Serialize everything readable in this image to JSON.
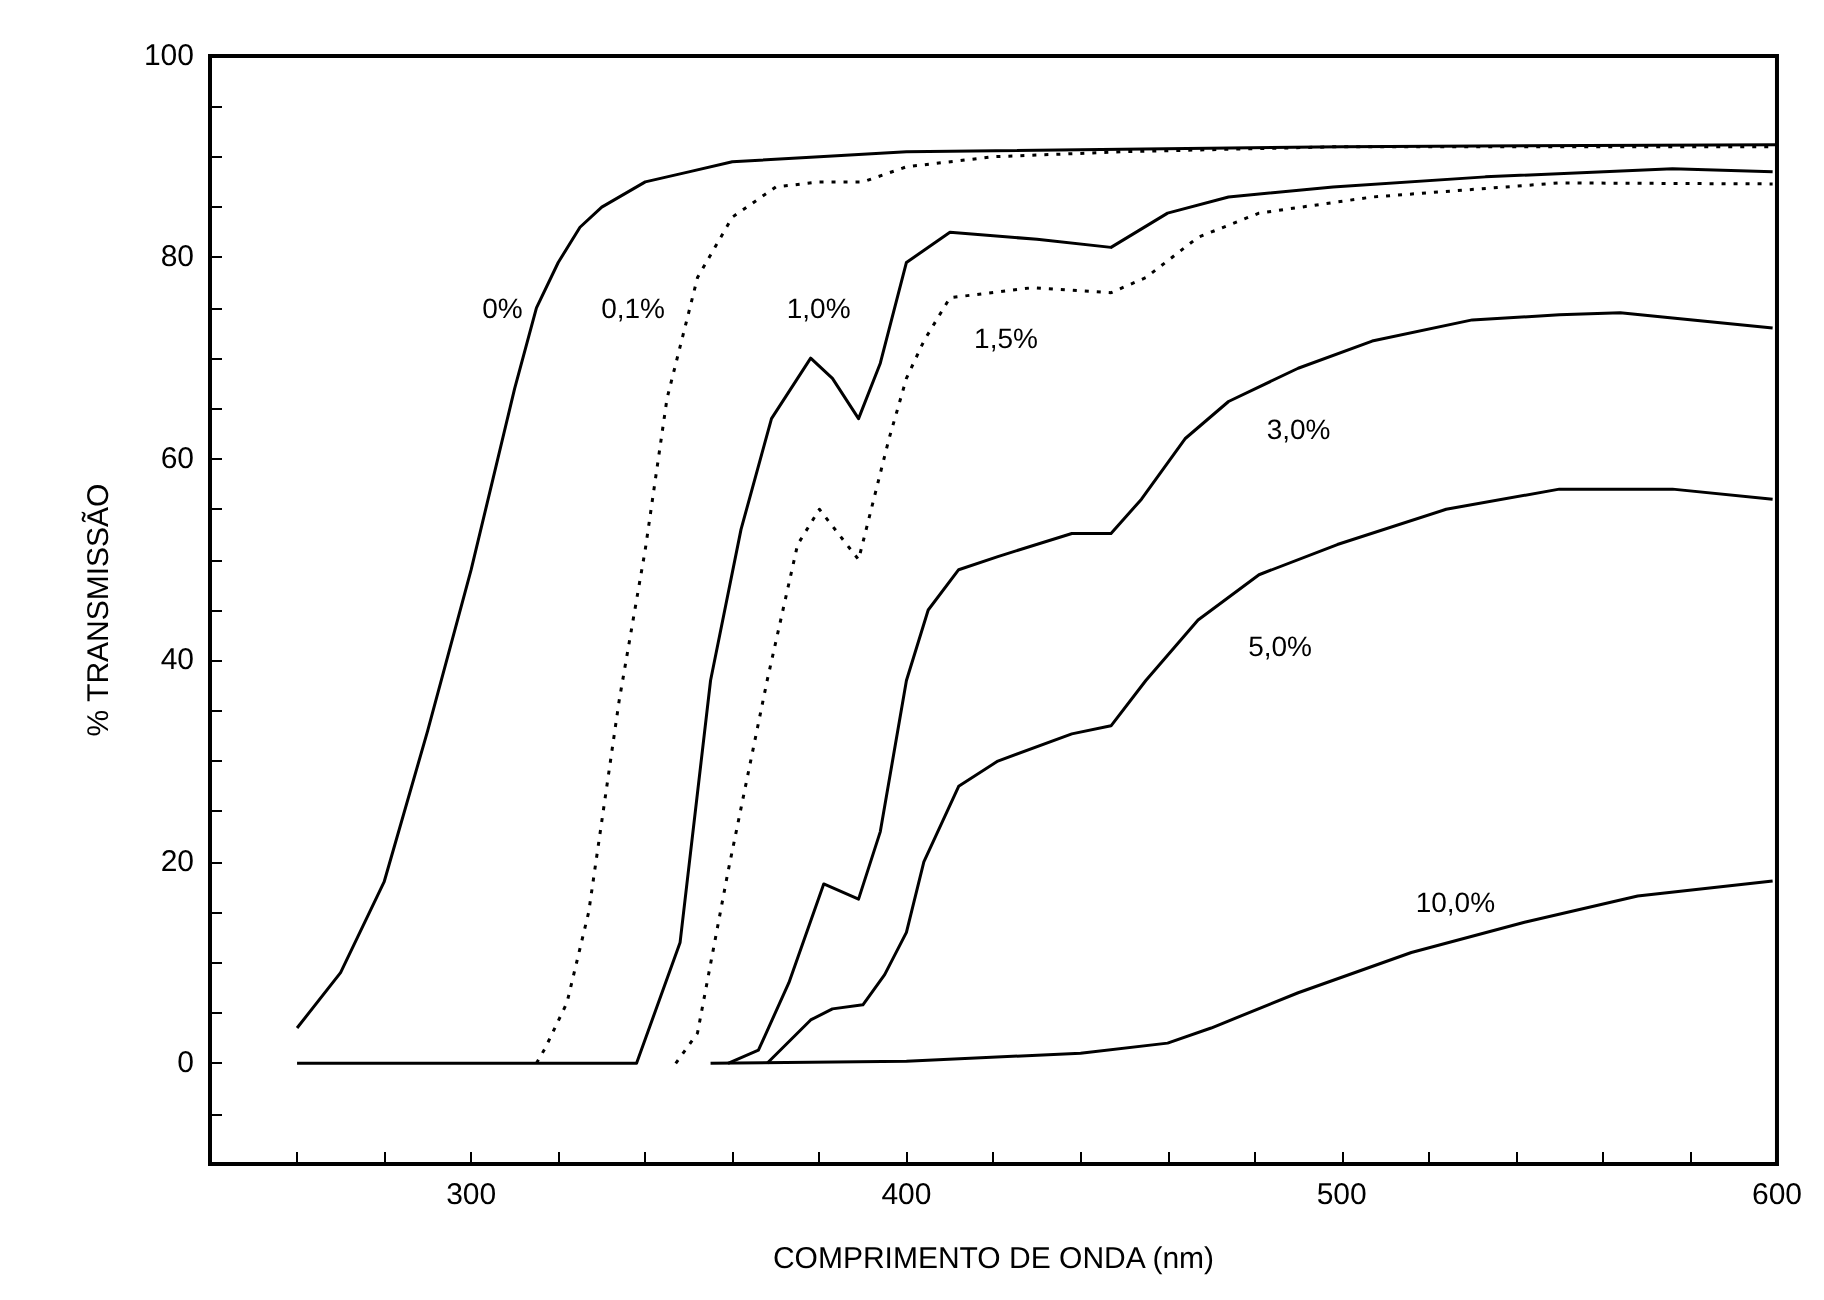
{
  "chart_data": {
    "type": "line",
    "xlabel": "COMPRIMENTO DE ONDA (nm)",
    "ylabel": "% TRANSMISSÃO",
    "xlim": [
      240,
      600
    ],
    "ylim": [
      -10,
      100
    ],
    "xticks": [
      {
        "value": 260,
        "label": null
      },
      {
        "value": 280,
        "label": null
      },
      300,
      {
        "value": 320,
        "label": null
      },
      {
        "value": 340,
        "label": null
      },
      {
        "value": 360,
        "label": null
      },
      {
        "value": 380,
        "label": null
      },
      400,
      {
        "value": 420,
        "label": null
      },
      {
        "value": 440,
        "label": null
      },
      {
        "value": 460,
        "label": null
      },
      {
        "value": 480,
        "label": null
      },
      500,
      {
        "value": 520,
        "label": null
      },
      {
        "value": 540,
        "label": null
      },
      {
        "value": 560,
        "label": null
      },
      {
        "value": 580,
        "label": null
      },
      600
    ],
    "yticks": [
      {
        "value": -5,
        "label": null
      },
      0,
      {
        "value": 5,
        "label": null
      },
      {
        "value": 10,
        "label": null
      },
      {
        "value": 15,
        "label": null
      },
      20,
      {
        "value": 25,
        "label": null
      },
      {
        "value": 30,
        "label": null
      },
      {
        "value": 35,
        "label": null
      },
      40,
      {
        "value": 45,
        "label": null
      },
      {
        "value": 50,
        "label": null
      },
      {
        "value": 55,
        "label": null
      },
      60,
      {
        "value": 65,
        "label": null
      },
      {
        "value": 70,
        "label": null
      },
      {
        "value": 75,
        "label": null
      },
      80,
      {
        "value": 85,
        "label": null
      },
      {
        "value": 90,
        "label": null
      },
      {
        "value": 95,
        "label": null
      },
      100
    ],
    "grid": false,
    "legend": false,
    "marker": "none",
    "series": [
      {
        "name": "0%",
        "color": "#000000",
        "line_style": "solid",
        "x": [
          260,
          270,
          280,
          290,
          300,
          305,
          310,
          315,
          320,
          325,
          330,
          340,
          350,
          360,
          380,
          400,
          500,
          600
        ],
        "values": [
          3.5,
          9,
          18,
          33,
          49,
          58,
          67,
          75,
          79.5,
          83,
          85,
          87.5,
          88.5,
          89.5,
          90,
          90.5,
          91,
          91.2
        ]
      },
      {
        "name": "0,1%",
        "color": "#000000",
        "line_style": "dotted",
        "x": [
          315,
          317,
          322,
          327,
          334,
          340,
          345,
          352,
          360,
          370,
          380,
          390,
          400,
          420,
          450,
          500,
          600
        ],
        "values": [
          0,
          1.5,
          6,
          15,
          36,
          51,
          66,
          78,
          84,
          87,
          87.5,
          87.5,
          89,
          90,
          90.5,
          91,
          91
        ]
      },
      {
        "name": "1,0%",
        "color": "#000000",
        "line_style": "solid",
        "x": [
          260,
          338,
          348,
          355,
          362,
          369,
          378,
          383,
          389,
          394,
          400,
          410,
          430,
          447,
          460,
          474,
          498,
          533,
          576,
          599
        ],
        "values": [
          0,
          0,
          12,
          38,
          53,
          64,
          70,
          68,
          64,
          69.5,
          79.5,
          82.5,
          81.8,
          81,
          84.4,
          86,
          87,
          88,
          88.8,
          88.5
        ]
      },
      {
        "name": "1,5%",
        "color": "#000000",
        "line_style": "dotted",
        "x": [
          347,
          352,
          359,
          368,
          375,
          380,
          389,
          396,
          400,
          404,
          410,
          429,
          447,
          455,
          467,
          481,
          507,
          550,
          599
        ],
        "values": [
          0,
          3,
          19,
          38,
          51.5,
          55,
          50,
          62,
          68,
          71.7,
          76,
          77,
          76.5,
          78,
          82,
          84.4,
          86,
          87.4,
          87.3
        ]
      },
      {
        "name": "3,0%",
        "color": "#000000",
        "line_style": "solid",
        "x": [
          359,
          366,
          373,
          381,
          389,
          394,
          400,
          405,
          412,
          421,
          438,
          447,
          454,
          464,
          474,
          490,
          507,
          530,
          550,
          564,
          576,
          599
        ],
        "values": [
          0,
          1.3,
          8,
          17.8,
          16.3,
          23,
          38,
          45,
          49,
          50.3,
          52.6,
          52.6,
          56,
          62,
          65.7,
          69,
          71.7,
          73.8,
          74.3,
          74.5,
          74,
          73
        ]
      },
      {
        "name": "5,0%",
        "color": "#000000",
        "line_style": "solid",
        "x": [
          368,
          378,
          383,
          390,
          395,
          400,
          404,
          412,
          421,
          438,
          447,
          455,
          467,
          481,
          499,
          524,
          550,
          576,
          599
        ],
        "values": [
          0,
          4.3,
          5.4,
          5.8,
          8.8,
          13,
          20,
          27.5,
          30,
          32.7,
          33.5,
          38,
          44,
          48.5,
          51.5,
          55,
          57,
          57,
          56
        ]
      },
      {
        "name": "10,0%",
        "color": "#000000",
        "line_style": "solid",
        "x": [
          355,
          400,
          440,
          460,
          470,
          490,
          516,
          542,
          568,
          599
        ],
        "values": [
          0,
          0.2,
          1,
          2,
          3.5,
          7,
          11,
          14,
          16.6,
          18.1
        ]
      }
    ]
  }
}
